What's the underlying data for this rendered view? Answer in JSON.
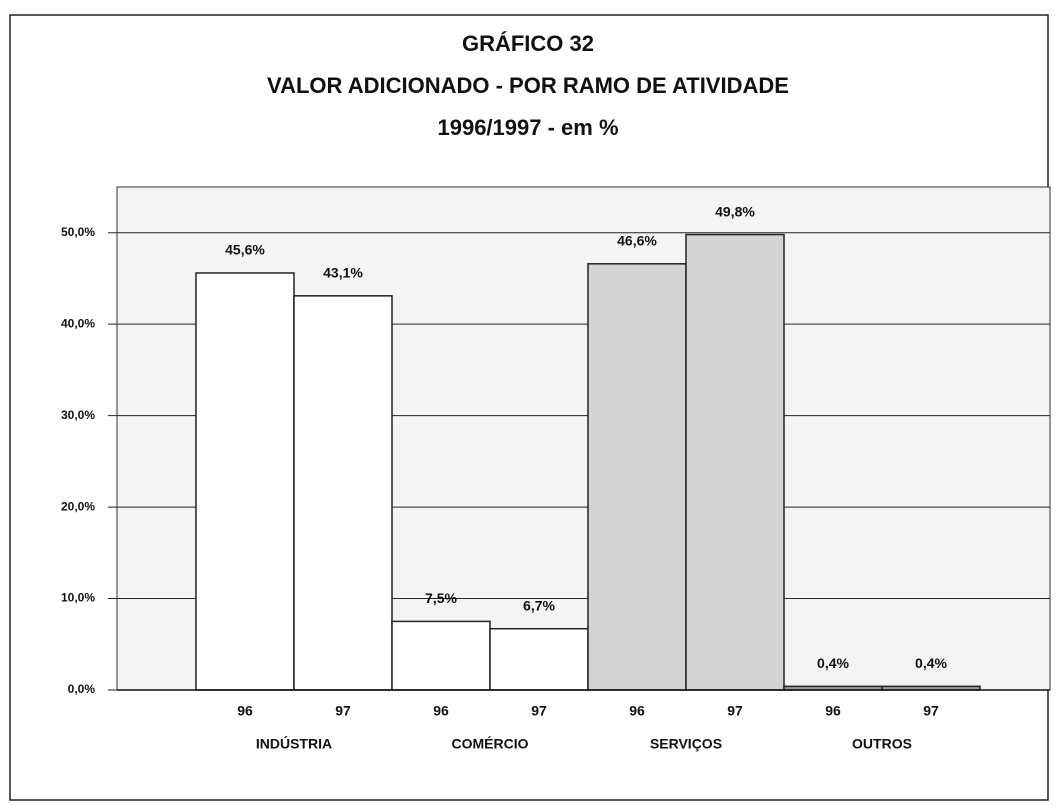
{
  "chart_data": {
    "type": "bar",
    "title": "GRÁFICO 32",
    "subtitle": "VALOR ADICIONADO - POR RAMO DE ATIVIDADE",
    "period": "1996/1997 - em %",
    "categories": [
      "INDÚSTRIA",
      "COMÉRCIO",
      "SERVIÇOS",
      "OUTROS"
    ],
    "category_colors": [
      "#ffffff",
      "#ffffff",
      "#d4d4d4",
      "#9a9a9a"
    ],
    "series": [
      {
        "name": "96",
        "color": "#ffffff",
        "values": [
          45.6,
          7.5,
          46.6,
          0.4
        ],
        "value_labels": [
          "45,6%",
          "7,5%",
          "46,6%",
          "0,4%"
        ]
      },
      {
        "name": "97",
        "color": "#ffffff",
        "values": [
          43.1,
          6.7,
          49.8,
          0.4
        ],
        "value_labels": [
          "43,1%",
          "6,7%",
          "49,8%",
          "0,4%"
        ]
      }
    ],
    "ylim": [
      0,
      55
    ],
    "yticks": [
      {
        "value": 0,
        "label": "0,0%"
      },
      {
        "value": 10,
        "label": "10,0%"
      },
      {
        "value": 20,
        "label": "20,0%"
      },
      {
        "value": 30,
        "label": "30,0%"
      },
      {
        "value": 40,
        "label": "40,0%"
      },
      {
        "value": 50,
        "label": "50,0%"
      }
    ],
    "grid": true
  }
}
